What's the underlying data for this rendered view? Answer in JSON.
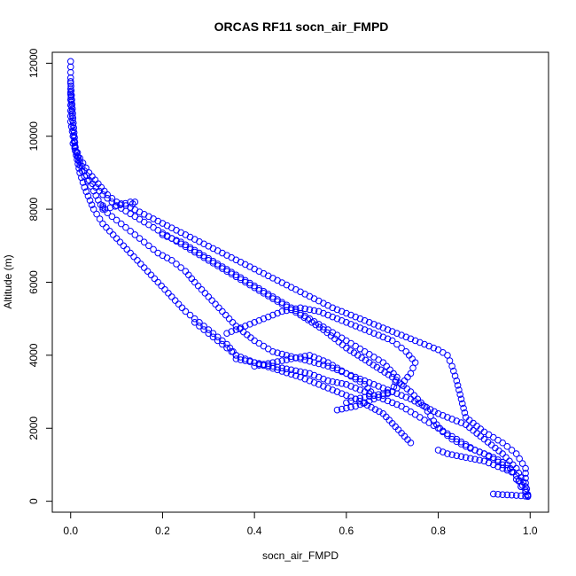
{
  "chart_data": {
    "type": "scatter",
    "title": "ORCAS RF11 socn_air_FMPD",
    "xlabel": "socn_air_FMPD",
    "ylabel": "Altitude (m)",
    "xlim": [
      -0.04,
      1.04
    ],
    "ylim": [
      -300,
      12300
    ],
    "xticks": [
      0.0,
      0.2,
      0.4,
      0.6,
      0.8,
      1.0
    ],
    "xtick_labels": [
      "0.0",
      "0.2",
      "0.4",
      "0.6",
      "0.8",
      "1.0"
    ],
    "yticks": [
      0,
      2000,
      4000,
      6000,
      8000,
      10000,
      12000
    ],
    "ytick_labels": [
      "0",
      "2000",
      "4000",
      "6000",
      "8000",
      "10000",
      "12000"
    ],
    "grid": false,
    "marker": "open-circle",
    "color": "#0000ff",
    "series": [
      {
        "x": [
          0.0,
          0.0,
          0.0,
          0.0,
          0.005,
          0.01,
          0.02,
          0.04,
          0.06,
          0.08,
          0.1,
          0.13,
          0.17,
          0.21,
          0.25,
          0.29,
          0.33,
          0.37,
          0.41,
          0.45,
          0.49,
          0.53,
          0.57,
          0.61,
          0.65,
          0.69,
          0.73,
          0.77,
          0.8,
          0.82,
          0.83,
          0.84,
          0.85,
          0.86,
          0.9,
          0.94,
          0.97,
          0.99,
          0.99,
          0.995
        ],
        "y": [
          12050,
          11600,
          11000,
          10400,
          10000,
          9700,
          9400,
          9000,
          8700,
          8400,
          8200,
          8050,
          7800,
          7550,
          7300,
          7050,
          6800,
          6550,
          6300,
          6050,
          5800,
          5550,
          5300,
          5100,
          4900,
          4700,
          4500,
          4300,
          4150,
          4000,
          3700,
          3300,
          2800,
          2300,
          1900,
          1600,
          1300,
          900,
          500,
          180
        ]
      },
      {
        "x": [
          0.0,
          0.005,
          0.01,
          0.02,
          0.03,
          0.05,
          0.07,
          0.1,
          0.13,
          0.16,
          0.19,
          0.22,
          0.25,
          0.27,
          0.3,
          0.33,
          0.36,
          0.4,
          0.44,
          0.5,
          0.56,
          0.62,
          0.68,
          0.74,
          0.8,
          0.86,
          0.9,
          0.94,
          0.97,
          0.99
        ],
        "y": [
          11500,
          10500,
          9700,
          9200,
          8900,
          8500,
          8000,
          7700,
          7400,
          7100,
          6800,
          6600,
          6300,
          6000,
          5600,
          5200,
          4800,
          4400,
          4100,
          3900,
          3700,
          3400,
          3100,
          2800,
          2400,
          2100,
          1700,
          1300,
          900,
          400
        ]
      },
      {
        "x": [
          0.0,
          0.005,
          0.01,
          0.02,
          0.03,
          0.05,
          0.07,
          0.1,
          0.13,
          0.16,
          0.19,
          0.22,
          0.25,
          0.28,
          0.31,
          0.34,
          0.36,
          0.4,
          0.45,
          0.5,
          0.56,
          0.62,
          0.68,
          0.74
        ],
        "y": [
          11200,
          10300,
          9600,
          9000,
          8600,
          8000,
          7600,
          7200,
          6800,
          6400,
          6000,
          5600,
          5200,
          4900,
          4600,
          4300,
          4000,
          3800,
          3600,
          3400,
          3100,
          2800,
          2400,
          1600
        ]
      },
      {
        "x": [
          0.005,
          0.02,
          0.04,
          0.07,
          0.1,
          0.14,
          0.18,
          0.22,
          0.26,
          0.3,
          0.34,
          0.38,
          0.42,
          0.46,
          0.5,
          0.55,
          0.6,
          0.65,
          0.7,
          0.74,
          0.77,
          0.79,
          0.81,
          0.83,
          0.86,
          0.9,
          0.94,
          0.97,
          0.99
        ],
        "y": [
          9800,
          9300,
          8800,
          8400,
          8100,
          7800,
          7500,
          7200,
          6900,
          6600,
          6300,
          6000,
          5700,
          5400,
          5100,
          4700,
          4200,
          3800,
          3400,
          3000,
          2600,
          2200,
          1900,
          1700,
          1500,
          1300,
          1000,
          700,
          300
        ]
      },
      {
        "x": [
          0.2,
          0.24,
          0.28,
          0.32,
          0.36,
          0.4,
          0.44,
          0.48,
          0.52,
          0.56,
          0.6,
          0.64,
          0.68,
          0.71,
          0.7,
          0.66,
          0.62,
          0.58
        ],
        "y": [
          7300,
          7100,
          6800,
          6500,
          6200,
          5900,
          5600,
          5300,
          5000,
          4700,
          4400,
          4100,
          3800,
          3400,
          3000,
          2800,
          2600,
          2500
        ]
      },
      {
        "x": [
          0.34,
          0.38,
          0.42,
          0.46,
          0.5,
          0.54,
          0.58,
          0.62,
          0.66,
          0.7,
          0.73,
          0.75,
          0.74,
          0.72,
          0.7,
          0.66,
          0.62,
          0.6
        ],
        "y": [
          4600,
          4800,
          5000,
          5200,
          5300,
          5200,
          5000,
          4800,
          4600,
          4400,
          4100,
          3800,
          3500,
          3200,
          3000,
          2900,
          2800,
          2700
        ]
      },
      {
        "x": [
          0.36,
          0.4,
          0.44,
          0.48,
          0.52,
          0.56,
          0.6,
          0.64,
          0.68,
          0.72,
          0.76,
          0.8,
          0.84,
          0.88,
          0.92,
          0.95,
          0.97,
          0.98
        ],
        "y": [
          3900,
          3800,
          3700,
          3600,
          3500,
          3300,
          3200,
          3000,
          2800,
          2600,
          2300,
          2000,
          1700,
          1400,
          1200,
          1000,
          700,
          400
        ]
      },
      {
        "x": [
          0.27,
          0.28,
          0.29,
          0.3,
          0.31,
          0.32,
          0.33,
          0.34,
          0.35,
          0.36
        ],
        "y": [
          4900,
          4800,
          4700,
          4600,
          4500,
          4400,
          4300,
          4200,
          4100,
          4000
        ]
      },
      {
        "x": [
          0.4,
          0.44,
          0.48,
          0.52,
          0.56,
          0.6,
          0.64,
          0.66
        ],
        "y": [
          3700,
          3800,
          3900,
          4000,
          3800,
          3500,
          3200,
          2900
        ]
      },
      {
        "x": [
          0.8,
          0.82,
          0.84,
          0.86,
          0.88,
          0.9,
          0.92,
          0.94,
          0.96,
          0.97,
          0.98,
          0.99,
          0.995
        ],
        "y": [
          1400,
          1300,
          1250,
          1200,
          1150,
          1100,
          1000,
          900,
          800,
          600,
          400,
          250,
          150
        ]
      },
      {
        "x": [
          0.92,
          0.94,
          0.96,
          0.97,
          0.98,
          0.99,
          0.995
        ],
        "y": [
          200,
          180,
          170,
          160,
          150,
          140,
          130
        ]
      },
      {
        "x": [
          0.07,
          0.07,
          0.075,
          0.13,
          0.135,
          0.14
        ],
        "y": [
          8050,
          8100,
          8000,
          8200,
          8150,
          8200
        ]
      }
    ]
  }
}
